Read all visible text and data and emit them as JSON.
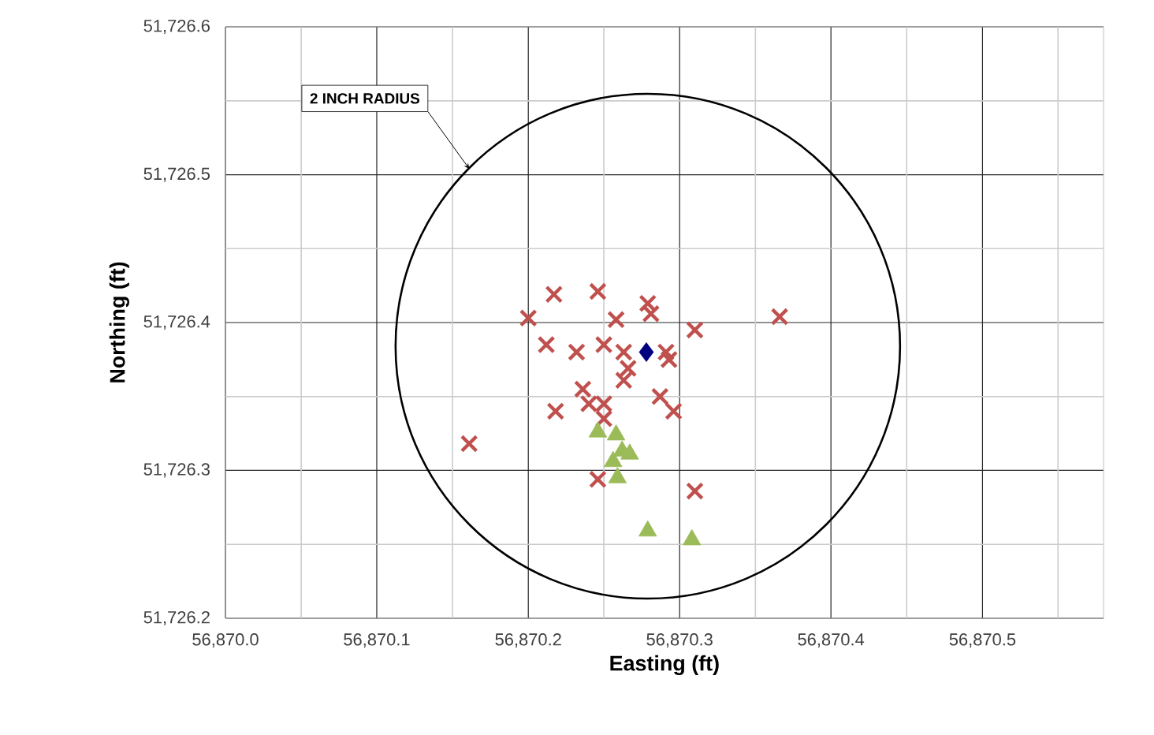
{
  "chart_data": {
    "type": "scatter",
    "xlabel": "Easting (ft)",
    "ylabel": "Northing (ft)",
    "xlim": [
      56870.0,
      56870.58
    ],
    "ylim": [
      51726.2,
      51726.6
    ],
    "xticks": [
      {
        "value": 56870.0,
        "label": "56,870.0"
      },
      {
        "value": 56870.05,
        "label": null
      },
      {
        "value": 56870.1,
        "label": "56,870.1"
      },
      {
        "value": 56870.15,
        "label": null
      },
      {
        "value": 56870.2,
        "label": "56,870.2"
      },
      {
        "value": 56870.25,
        "label": null
      },
      {
        "value": 56870.3,
        "label": "56,870.3"
      },
      {
        "value": 56870.35,
        "label": null
      },
      {
        "value": 56870.4,
        "label": "56,870.4"
      },
      {
        "value": 56870.45,
        "label": null
      },
      {
        "value": 56870.5,
        "label": "56,870.5"
      },
      {
        "value": 56870.55,
        "label": null
      }
    ],
    "yticks": [
      {
        "value": 51726.2,
        "label": "51,726.2"
      },
      {
        "value": 51726.25,
        "label": null
      },
      {
        "value": 51726.3,
        "label": "51,726.3"
      },
      {
        "value": 51726.35,
        "label": null
      },
      {
        "value": 51726.4,
        "label": "51,726.4"
      },
      {
        "value": 51726.45,
        "label": null
      },
      {
        "value": 51726.5,
        "label": "51,726.5"
      },
      {
        "value": 51726.55,
        "label": null
      },
      {
        "value": 51726.6,
        "label": "51,726.6"
      }
    ],
    "grid": true,
    "series": [
      {
        "color": "#c0504d",
        "marker": "cross",
        "x": [
          56870.2,
          56870.217,
          56870.246,
          56870.279,
          56870.281,
          56870.258,
          56870.31,
          56870.366,
          56870.212,
          56870.232,
          56870.25,
          56870.263,
          56870.291,
          56870.293,
          56870.266,
          56870.263,
          56870.236,
          56870.287,
          56870.218,
          56870.296,
          56870.24,
          56870.25,
          56870.25,
          56870.161,
          56870.246,
          56870.31
        ],
        "values": [
          51726.403,
          51726.419,
          51726.421,
          51726.413,
          51726.406,
          51726.402,
          51726.395,
          51726.404,
          51726.385,
          51726.38,
          51726.385,
          51726.38,
          51726.38,
          51726.375,
          51726.369,
          51726.361,
          51726.355,
          51726.35,
          51726.34,
          51726.34,
          51726.345,
          51726.345,
          51726.335,
          51726.318,
          51726.294,
          51726.286
        ]
      },
      {
        "color": "#9bbb59",
        "marker": "triangle",
        "x": [
          56870.246,
          56870.258,
          56870.262,
          56870.267,
          56870.256,
          56870.259,
          56870.279,
          56870.308
        ],
        "values": [
          51726.326,
          51726.324,
          51726.313,
          51726.311,
          51726.306,
          51726.295,
          51726.259,
          51726.253
        ]
      },
      {
        "color": "#000080",
        "marker": "diamond",
        "x": [
          56870.278
        ],
        "values": [
          51726.38
        ]
      }
    ],
    "annotations": [
      {
        "text": "2 INCH RADIUS",
        "x": 56870.161,
        "y": 51726.504
      }
    ]
  }
}
